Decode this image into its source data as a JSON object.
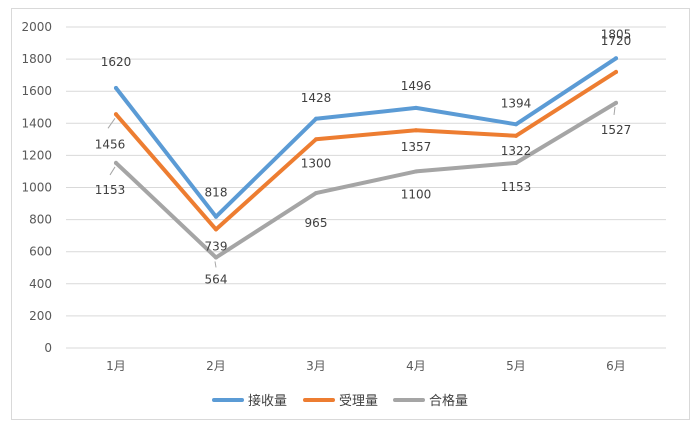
{
  "chart_data": {
    "type": "line",
    "title": "",
    "xlabel": "",
    "ylabel": "",
    "categories": [
      "1月",
      "2月",
      "3月",
      "4月",
      "5月",
      "6月"
    ],
    "ylim": [
      0,
      2000
    ],
    "yticks": [
      0,
      200,
      400,
      600,
      800,
      1000,
      1200,
      1400,
      1600,
      1800,
      2000
    ],
    "grid": true,
    "legend_position": "bottom",
    "series": [
      {
        "name": "接收量",
        "color": "#5b9bd5",
        "values": [
          1620,
          818,
          1428,
          1496,
          1394,
          1805
        ]
      },
      {
        "name": "受理量",
        "color": "#ed7d31",
        "values": [
          1456,
          739,
          1300,
          1357,
          1322,
          1720
        ]
      },
      {
        "name": "合格量",
        "color": "#a5a5a5",
        "values": [
          1153,
          564,
          965,
          1100,
          1153,
          1527
        ]
      }
    ]
  }
}
